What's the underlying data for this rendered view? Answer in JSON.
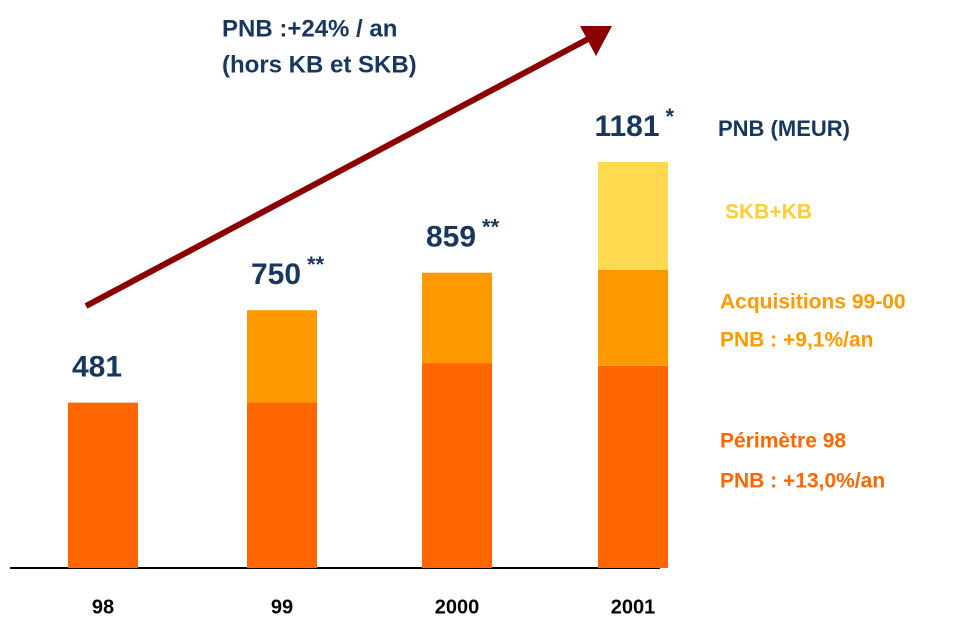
{
  "chart_data": {
    "type": "stacked_bar",
    "annotation": [
      "PNB :+24% / an",
      "(hors KB et SKB)"
    ],
    "legend_title": "PNB (MEUR)",
    "categories": [
      "98",
      "99",
      "2000",
      "2001"
    ],
    "totals": [
      481,
      750,
      859,
      1181
    ],
    "total_notes": [
      null,
      "**",
      "**",
      "*"
    ],
    "series": [
      {
        "name": "Périmètre 98",
        "note": "PNB : +13,0%/an",
        "color": "#ff6600",
        "values": [
          481,
          482,
          596,
          588
        ]
      },
      {
        "name": "Acquisitions 99-00",
        "note": "PNB : +9,1%/an",
        "color": "#ff9900",
        "values": [
          null,
          268,
          263,
          279
        ]
      },
      {
        "name": "SKB+KB",
        "color": "#ffd94f",
        "values": [
          null,
          null,
          null,
          314
        ]
      }
    ]
  }
}
